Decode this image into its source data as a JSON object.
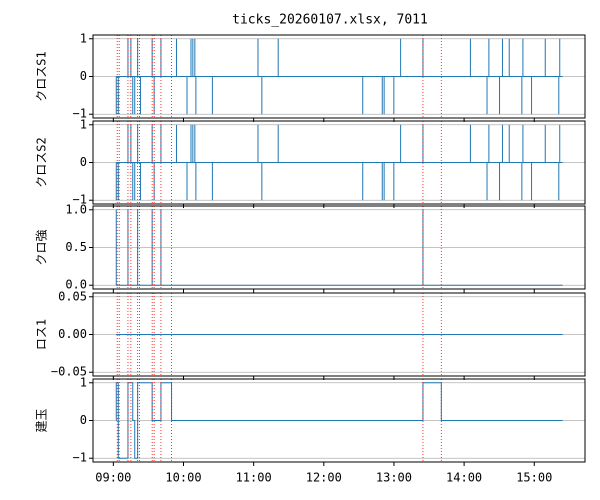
{
  "chart_data": [
    {
      "type": "spikes",
      "title": "ticks_20260107.xlsx, 7011",
      "ylabel": "クロスS1",
      "xlim": [
        522.6,
        943.4
      ],
      "ylim": [
        -1.1,
        1.1
      ],
      "yticks": [
        {
          "value": -1,
          "label": "−1"
        },
        0,
        1
      ],
      "grid": true,
      "vlines": [
        543.3,
        545,
        552.5,
        555,
        560.8,
        562.4,
        573.2,
        574.9,
        580.7,
        589.8,
        804.8,
        820.5
      ],
      "vline_color": "#ff0000",
      "series": [
        {
          "color": "#1f77b4",
          "x": [
            542.4,
            542.5,
            544.2,
            552.5,
            555,
            556.6,
            558.3,
            560.8,
            563.2,
            573.2,
            574.9,
            580.7,
            594,
            603,
            606.4,
            608,
            609.7,
            610.6,
            624.7,
            663.7,
            667,
            681,
            753.3,
            770,
            771.6,
            779.9,
            785.7,
            804.8,
            845.4,
            859.6,
            861.2,
            870.3,
            872.8,
            878.6,
            889.4,
            890.3,
            897.7,
            909.4,
            921,
            921.8,
            924.3
          ],
          "values": [
            0,
            -1,
            -1,
            1,
            1,
            -1,
            -1,
            1,
            -1,
            1,
            -1,
            1,
            1,
            -1,
            1,
            1,
            1,
            -1,
            -1,
            1,
            -1,
            1,
            -1,
            -1,
            -1,
            -1,
            1,
            1,
            1,
            -1,
            1,
            -1,
            1,
            1,
            -1,
            1,
            -1,
            1,
            -1,
            1,
            0
          ]
        }
      ]
    },
    {
      "type": "spikes",
      "ylabel": "クロスS2",
      "xlim": [
        522.6,
        943.4
      ],
      "ylim": [
        -1.1,
        1.1
      ],
      "yticks": [
        {
          "value": -1,
          "label": "−1"
        },
        0,
        1
      ],
      "grid": true,
      "series": [
        {
          "color": "#1f77b4",
          "x": [
            542.4,
            542.5,
            544.2,
            552.5,
            555,
            556.6,
            558.3,
            560.8,
            563.2,
            573.2,
            574.9,
            580.7,
            594,
            603,
            606.4,
            608,
            609.7,
            610.6,
            624.7,
            663.7,
            667,
            681,
            753.3,
            770,
            771.6,
            779.9,
            785.7,
            804.8,
            845.4,
            859.6,
            861.2,
            870.3,
            872.8,
            878.6,
            889.4,
            890.3,
            897.7,
            909.4,
            921,
            921.8,
            924.3
          ],
          "values": [
            0,
            -1,
            -1,
            1,
            1,
            -1,
            -1,
            1,
            -1,
            1,
            -1,
            1,
            1,
            -1,
            1,
            1,
            1,
            -1,
            -1,
            1,
            -1,
            1,
            -1,
            -1,
            -1,
            -1,
            1,
            1,
            1,
            -1,
            1,
            -1,
            1,
            1,
            -1,
            1,
            -1,
            1,
            -1,
            1,
            0
          ]
        }
      ]
    },
    {
      "type": "spikes",
      "ylabel": "クロ強",
      "xlim": [
        522.6,
        943.4
      ],
      "ylim": [
        -0.05,
        1.05
      ],
      "yticks": [
        {
          "value": 0,
          "label": "0.0"
        },
        0.5,
        {
          "value": 1,
          "label": "1.0"
        }
      ],
      "grid": true,
      "series": [
        {
          "color": "#1f77b4",
          "x": [
            542.4,
            542.5,
            552.5,
            560.8,
            573.2,
            580.7,
            804.8,
            924.3
          ],
          "values": [
            0,
            1,
            1,
            1,
            1,
            1,
            1,
            0
          ]
        }
      ]
    },
    {
      "type": "line",
      "ylabel": "ロス1",
      "xlim": [
        522.6,
        943.4
      ],
      "ylim": [
        -0.055,
        0.055
      ],
      "yticks": [
        {
          "value": -0.05,
          "label": "−0.05"
        },
        {
          "value": 0,
          "label": "0.00"
        },
        0.05
      ],
      "grid": true,
      "series": [
        {
          "color": "#1f77b4",
          "x": [
            542.4,
            924.3
          ],
          "values": [
            0,
            0
          ]
        }
      ]
    },
    {
      "type": "step",
      "ylabel": "建玉",
      "xlim": [
        522.6,
        943.4
      ],
      "ylim": [
        -1.1,
        1.1
      ],
      "yticks": [
        {
          "value": -1,
          "label": "−1"
        },
        0,
        1
      ],
      "grid": true,
      "xticks": [
        {
          "value": 540,
          "label": "09:00"
        },
        {
          "value": 600,
          "label": "10:00"
        },
        {
          "value": 660,
          "label": "11:00"
        },
        {
          "value": 720,
          "label": "12:00"
        },
        {
          "value": 780,
          "label": "13:00"
        },
        {
          "value": 840,
          "label": "14:00"
        },
        {
          "value": 900,
          "label": "15:00"
        }
      ],
      "series": [
        {
          "color": "#1f77b4",
          "x": [
            542.4,
            542.5,
            544.2,
            552.5,
            556.6,
            558.3,
            560.8,
            573.2,
            580.7,
            589.8,
            804.8,
            820.5,
            924.3
          ],
          "values": [
            0,
            1,
            -1,
            1,
            0,
            -1,
            1,
            0,
            1,
            0,
            1,
            0,
            0
          ]
        }
      ]
    }
  ]
}
